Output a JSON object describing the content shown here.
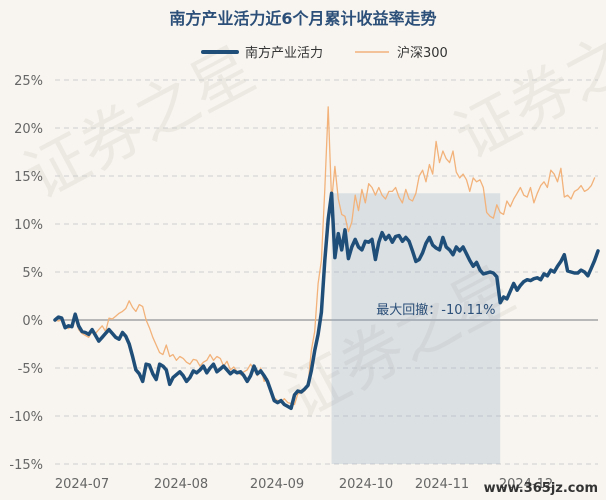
{
  "chart_data": {
    "type": "line",
    "title": "南方产业活力近6个月累计收益率走势",
    "legend": {
      "placement": "top-center"
    },
    "ylim": [
      -15,
      25
    ],
    "yticks": [
      "25%",
      "20%",
      "15%",
      "10%",
      "5%",
      "0%",
      "-5%",
      "-10%",
      "-15%"
    ],
    "xticks": [
      "2024-07",
      "2024-08",
      "2024-09",
      "2024-10",
      "2024-11",
      "2024-12"
    ],
    "grid": true,
    "annotation": {
      "label": "最大回撤：-10.11%"
    },
    "series": [
      {
        "name": "南方产业活力",
        "color": "#1f4e79",
        "values": [
          0,
          0.3,
          0.2,
          -0.8,
          -0.6,
          -0.7,
          0.6,
          -0.6,
          -1.2,
          -1.3,
          -1.5,
          -1.0,
          -1.6,
          -2.2,
          -1.8,
          -1.4,
          -1.0,
          -1.4,
          -1.8,
          -2.0,
          -1.3,
          -1.7,
          -2.5,
          -3.8,
          -5.2,
          -5.6,
          -6.4,
          -4.6,
          -4.7,
          -5.6,
          -6.2,
          -4.6,
          -4.8,
          -5.2,
          -6.7,
          -6.0,
          -5.7,
          -5.4,
          -5.8,
          -6.4,
          -6.0,
          -5.3,
          -5.5,
          -5.2,
          -4.8,
          -5.5,
          -5.0,
          -4.6,
          -5.4,
          -5.1,
          -4.8,
          -5.2,
          -5.6,
          -5.3,
          -5.5,
          -5.4,
          -5.8,
          -6.4,
          -5.8,
          -4.8,
          -5.6,
          -5.3,
          -5.8,
          -6.4,
          -7.4,
          -8.4,
          -8.6,
          -8.4,
          -8.8,
          -9.0,
          -9.2,
          -7.8,
          -7.4,
          -7.5,
          -7.2,
          -6.8,
          -5.3,
          -3.2,
          -1.5,
          0.8,
          6.2,
          10.5,
          13.2,
          6.5,
          9.0,
          7.3,
          9.4,
          6.4,
          7.6,
          8.4,
          7.6,
          7.3,
          8.2,
          8.1,
          8.4,
          6.3,
          8.1,
          9.1,
          8.4,
          8.8,
          8.1,
          8.7,
          8.8,
          8.2,
          8.6,
          8.2,
          7.2,
          6.1,
          6.3,
          7.0,
          8.0,
          8.6,
          7.8,
          7.5,
          7.3,
          8.6,
          7.6,
          7.3,
          6.8,
          7.6,
          7.2,
          7.6,
          6.9,
          6.2,
          5.6,
          6.0,
          5.2,
          4.8,
          4.9,
          5.0,
          4.9,
          4.5,
          1.8,
          2.4,
          2.2,
          3.0,
          3.8,
          3.1,
          3.6,
          4.0,
          4.2,
          4.1,
          4.3,
          4.4,
          4.2,
          4.8,
          4.6,
          5.2,
          5.0,
          5.6,
          6.1,
          6.8,
          5.1,
          5.0,
          4.9,
          4.9,
          5.2,
          5.0,
          4.6,
          5.4,
          6.2,
          7.2
        ]
      },
      {
        "name": "沪深300",
        "color": "#f2b27a",
        "values": [
          0,
          -0.1,
          0,
          -0.6,
          -0.9,
          -0.6,
          0.2,
          -1.0,
          -1.4,
          -1.6,
          -1.8,
          -1.2,
          -1.4,
          -1.0,
          -0.6,
          -1.2,
          0.2,
          0.1,
          0.4,
          0.7,
          0.9,
          1.2,
          2.0,
          1.3,
          0.9,
          1.6,
          1.4,
          0,
          -0.8,
          -1.8,
          -2.6,
          -3.4,
          -3.6,
          -2.6,
          -3.8,
          -3.6,
          -4.2,
          -3.8,
          -4.0,
          -4.4,
          -4.6,
          -4.1,
          -4.2,
          -4.8,
          -4.4,
          -4.2,
          -3.6,
          -4.2,
          -3.8,
          -4.0,
          -4.8,
          -4.3,
          -5.2,
          -4.9,
          -5.4,
          -5.7,
          -5.4,
          -5.2,
          -4.6,
          -5.2,
          -5.8,
          -5.0,
          -6.4,
          -6.1,
          -7.4,
          -8.1,
          -8.4,
          -8.6,
          -8.2,
          -8.6,
          -8.7,
          -8.8,
          -7.7,
          -7.6,
          -7.4,
          -6.8,
          -3.2,
          -1.2,
          3.8,
          6.2,
          13.6,
          22.2,
          12.4,
          16.0,
          12.6,
          11.0,
          10.8,
          9.2,
          10.2,
          13.0,
          11.4,
          13.6,
          12.2,
          14.2,
          13.8,
          13.0,
          13.8,
          13.0,
          12.6,
          13.4,
          13.4,
          13.8,
          12.8,
          12.2,
          13.6,
          12.6,
          12.4,
          13.2,
          15.0,
          15.6,
          14.4,
          16.2,
          15.2,
          18.6,
          16.4,
          17.6,
          16.8,
          16.4,
          17.6,
          15.4,
          14.8,
          15.2,
          14.6,
          13.4,
          14.8,
          14.4,
          14.6,
          13.8,
          11.2,
          10.8,
          10.6,
          12.0,
          11.2,
          11.0,
          12.4,
          11.8,
          12.6,
          13.2,
          13.8,
          13.0,
          12.8,
          13.8,
          12.2,
          13.2,
          14.0,
          14.4,
          13.8,
          15.6,
          15.2,
          14.4,
          15.8,
          12.8,
          13.0,
          12.6,
          13.4,
          13.6,
          14.0,
          13.4,
          13.6,
          14.0,
          14.8
        ]
      }
    ]
  },
  "watermark": {
    "text": "证券之星",
    "site": "www.365jz.com"
  }
}
